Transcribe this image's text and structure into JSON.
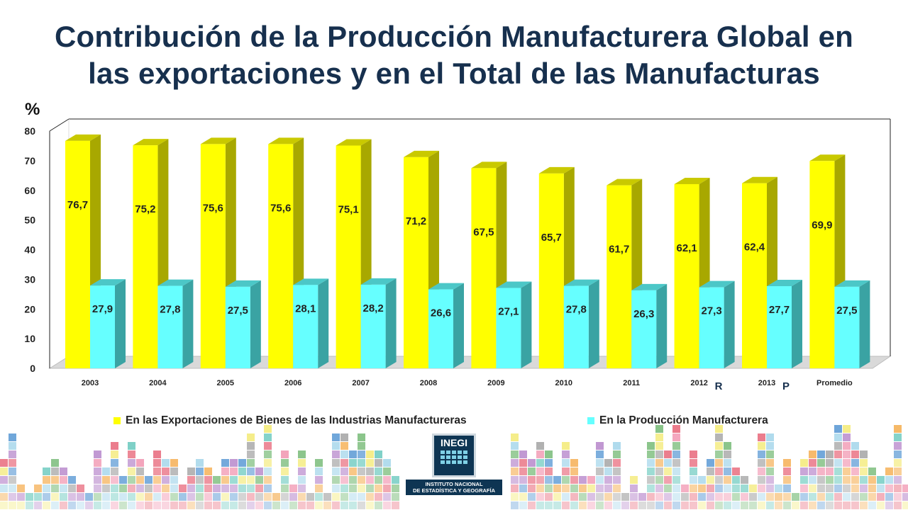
{
  "title_line1": "Contribución de la Producción Manufacturera Global en",
  "title_line2": "las exportaciones y en el Total de las Manufacturas",
  "chart_data": {
    "type": "bar",
    "unit_label": "%",
    "categories": [
      "2003",
      "2004",
      "2005",
      "2006",
      "2007",
      "2008",
      "2009",
      "2010",
      "2011",
      "2012",
      "2013",
      "Promedio"
    ],
    "category_markers": {
      "2012": "R",
      "2013": "P"
    },
    "series": [
      {
        "name": "En las Exportaciones de Bienes de las Industrias Manufactureras",
        "values": [
          76.7,
          75.2,
          75.6,
          75.6,
          75.1,
          71.2,
          67.5,
          65.7,
          61.7,
          62.1,
          62.4,
          69.9
        ],
        "labels": [
          "76,7",
          "75,2",
          "75,6",
          "75,6",
          "75,1",
          "71,2",
          "67,5",
          "65,7",
          "61,7",
          "62,1",
          "62,4",
          "69,9"
        ],
        "color": "#ffff00",
        "side_color": "#a8a800",
        "top_color": "#c9c900"
      },
      {
        "name": "En la Producción Manufacturera",
        "values": [
          27.9,
          27.8,
          27.5,
          28.1,
          28.2,
          26.6,
          27.1,
          27.8,
          26.3,
          27.3,
          27.7,
          27.5
        ],
        "labels": [
          "27,9",
          "27,8",
          "27,5",
          "28,1",
          "28,2",
          "26,6",
          "27,1",
          "27,8",
          "26,3",
          "27,3",
          "27,7",
          "27,5"
        ],
        "color": "#66ffff",
        "side_color": "#3aa3a3",
        "top_color": "#4cc7c7"
      }
    ],
    "ylim": [
      0,
      80
    ],
    "yticks": [
      "0",
      "10",
      "20",
      "30",
      "40",
      "50",
      "60",
      "70",
      "80"
    ],
    "grid": false,
    "legend_position": "bottom"
  },
  "logo": {
    "word": "INEGI",
    "text_line1": "INSTITUTO NACIONAL",
    "text_line2": "DE ESTADÍSTICA Y GEOGRAFÍA"
  },
  "colors": {
    "title": "#17304e",
    "deco_palette": [
      "#e65a6e",
      "#f4a742",
      "#9bd1e8",
      "#6cb56c",
      "#b07cc6",
      "#f2e86a",
      "#4a8fd0",
      "#9c9c9c",
      "#f08aa8",
      "#5cc4b8"
    ]
  }
}
